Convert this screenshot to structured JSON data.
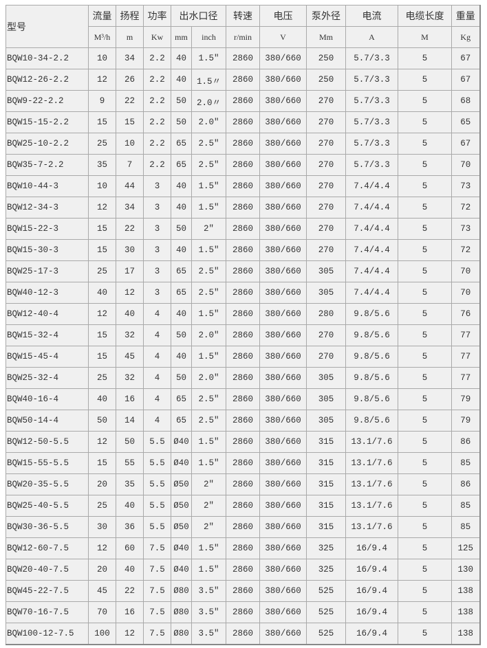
{
  "headers": {
    "model": "型号",
    "flow": "流量",
    "head": "扬程",
    "power": "功率",
    "outlet": "出水口径",
    "speed": "转速",
    "voltage": "电压",
    "pump_dia": "泵外径",
    "current": "电流",
    "cable": "电缆长度",
    "weight": "重量"
  },
  "units": [
    "M³/h",
    "m",
    "Kw",
    "mm",
    "inch",
    "r/min",
    "V",
    "Mm",
    "A",
    "M",
    "Kg"
  ],
  "rows": [
    [
      "BQW10-34-2.2",
      "10",
      "34",
      "2.2",
      "40",
      "1.5″",
      "2860",
      "380/660",
      "250",
      "5.7/3.3",
      "5",
      "67"
    ],
    [
      "BQW12-26-2.2",
      "12",
      "26",
      "2.2",
      "40",
      "1.5〃",
      "2860",
      "380/660",
      "250",
      "5.7/3.3",
      "5",
      "67"
    ],
    [
      "BQW9-22-2.2",
      "9",
      "22",
      "2.2",
      "50",
      "2.0〃",
      "2860",
      "380/660",
      "270",
      "5.7/3.3",
      "5",
      "68"
    ],
    [
      "BQW15-15-2.2",
      "15",
      "15",
      "2.2",
      "50",
      "2.0″",
      "2860",
      "380/660",
      "270",
      "5.7/3.3",
      "5",
      "65"
    ],
    [
      "BQW25-10-2.2",
      "25",
      "10",
      "2.2",
      "65",
      "2.5″",
      "2860",
      "380/660",
      "270",
      "5.7/3.3",
      "5",
      "67"
    ],
    [
      "BQW35-7-2.2",
      "35",
      "7",
      "2.2",
      "65",
      "2.5″",
      "2860",
      "380/660",
      "270",
      "5.7/3.3",
      "5",
      "70"
    ],
    [
      "BQW10-44-3",
      "10",
      "44",
      "3",
      "40",
      "1.5″",
      "2860",
      "380/660",
      "270",
      "7.4/4.4",
      "5",
      "73"
    ],
    [
      "BQW12-34-3",
      "12",
      "34",
      "3",
      "40",
      "1.5″",
      "2860",
      "380/660",
      "270",
      "7.4/4.4",
      "5",
      "72"
    ],
    [
      "BQW15-22-3",
      "15",
      "22",
      "3",
      "50",
      "2″",
      "2860",
      "380/660",
      "270",
      "7.4/4.4",
      "5",
      "73"
    ],
    [
      "BQW15-30-3",
      "15",
      "30",
      "3",
      "40",
      "1.5″",
      "2860",
      "380/660",
      "270",
      "7.4/4.4",
      "5",
      "72"
    ],
    [
      "BQW25-17-3",
      "25",
      "17",
      "3",
      "65",
      "2.5″",
      "2860",
      "380/660",
      "305",
      "7.4/4.4",
      "5",
      "70"
    ],
    [
      "BQW40-12-3",
      "40",
      "12",
      "3",
      "65",
      "2.5″",
      "2860",
      "380/660",
      "305",
      "7.4/4.4",
      "5",
      "70"
    ],
    [
      "BQW12-40-4",
      "12",
      "40",
      "4",
      "40",
      "1.5″",
      "2860",
      "380/660",
      "280",
      "9.8/5.6",
      "5",
      "76"
    ],
    [
      "BQW15-32-4",
      "15",
      "32",
      "4",
      "50",
      "2.0″",
      "2860",
      "380/660",
      "270",
      "9.8/5.6",
      "5",
      "77"
    ],
    [
      "BQW15-45-4",
      "15",
      "45",
      "4",
      "40",
      "1.5″",
      "2860",
      "380/660",
      "270",
      "9.8/5.6",
      "5",
      "77"
    ],
    [
      "BQW25-32-4",
      "25",
      "32",
      "4",
      "50",
      "2.0″",
      "2860",
      "380/660",
      "305",
      "9.8/5.6",
      "5",
      "77"
    ],
    [
      "BQW40-16-4",
      "40",
      "16",
      "4",
      "65",
      "2.5″",
      "2860",
      "380/660",
      "305",
      "9.8/5.6",
      "5",
      "79"
    ],
    [
      "BQW50-14-4",
      "50",
      "14",
      "4",
      "65",
      "2.5″",
      "2860",
      "380/660",
      "305",
      "9.8/5.6",
      "5",
      "79"
    ],
    [
      "BQW12-50-5.5",
      "12",
      "50",
      "5.5",
      "Ø40",
      "1.5″",
      "2860",
      "380/660",
      "315",
      "13.1/7.6",
      "5",
      "86"
    ],
    [
      "BQW15-55-5.5",
      "15",
      "55",
      "5.5",
      "Ø40",
      "1.5″",
      "2860",
      "380/660",
      "315",
      "13.1/7.6",
      "5",
      "85"
    ],
    [
      "BQW20-35-5.5",
      "20",
      "35",
      "5.5",
      "Ø50",
      "2″",
      "2860",
      "380/660",
      "315",
      "13.1/7.6",
      "5",
      "86"
    ],
    [
      "BQW25-40-5.5",
      "25",
      "40",
      "5.5",
      "Ø50",
      "2″",
      "2860",
      "380/660",
      "315",
      "13.1/7.6",
      "5",
      "85"
    ],
    [
      "BQW30-36-5.5",
      "30",
      "36",
      "5.5",
      "Ø50",
      "2″",
      "2860",
      "380/660",
      "315",
      "13.1/7.6",
      "5",
      "85"
    ],
    [
      "BQW12-60-7.5",
      "12",
      "60",
      "7.5",
      "Ø40",
      "1.5″",
      "2860",
      "380/660",
      "325",
      "16/9.4",
      "5",
      "125"
    ],
    [
      "BQW20-40-7.5",
      "20",
      "40",
      "7.5",
      "Ø40",
      "1.5″",
      "2860",
      "380/660",
      "325",
      "16/9.4",
      "5",
      "130"
    ],
    [
      "BQW45-22-7.5",
      "45",
      "22",
      "7.5",
      "Ø80",
      "3.5″",
      "2860",
      "380/660",
      "525",
      "16/9.4",
      "5",
      "138"
    ],
    [
      "BQW70-16-7.5",
      "70",
      "16",
      "7.5",
      "Ø80",
      "3.5″",
      "2860",
      "380/660",
      "525",
      "16/9.4",
      "5",
      "138"
    ],
    [
      "BQW100-12-7.5",
      "100",
      "12",
      "7.5",
      "Ø80",
      "3.5″",
      "2860",
      "380/660",
      "525",
      "16/9.4",
      "5",
      "138"
    ]
  ]
}
